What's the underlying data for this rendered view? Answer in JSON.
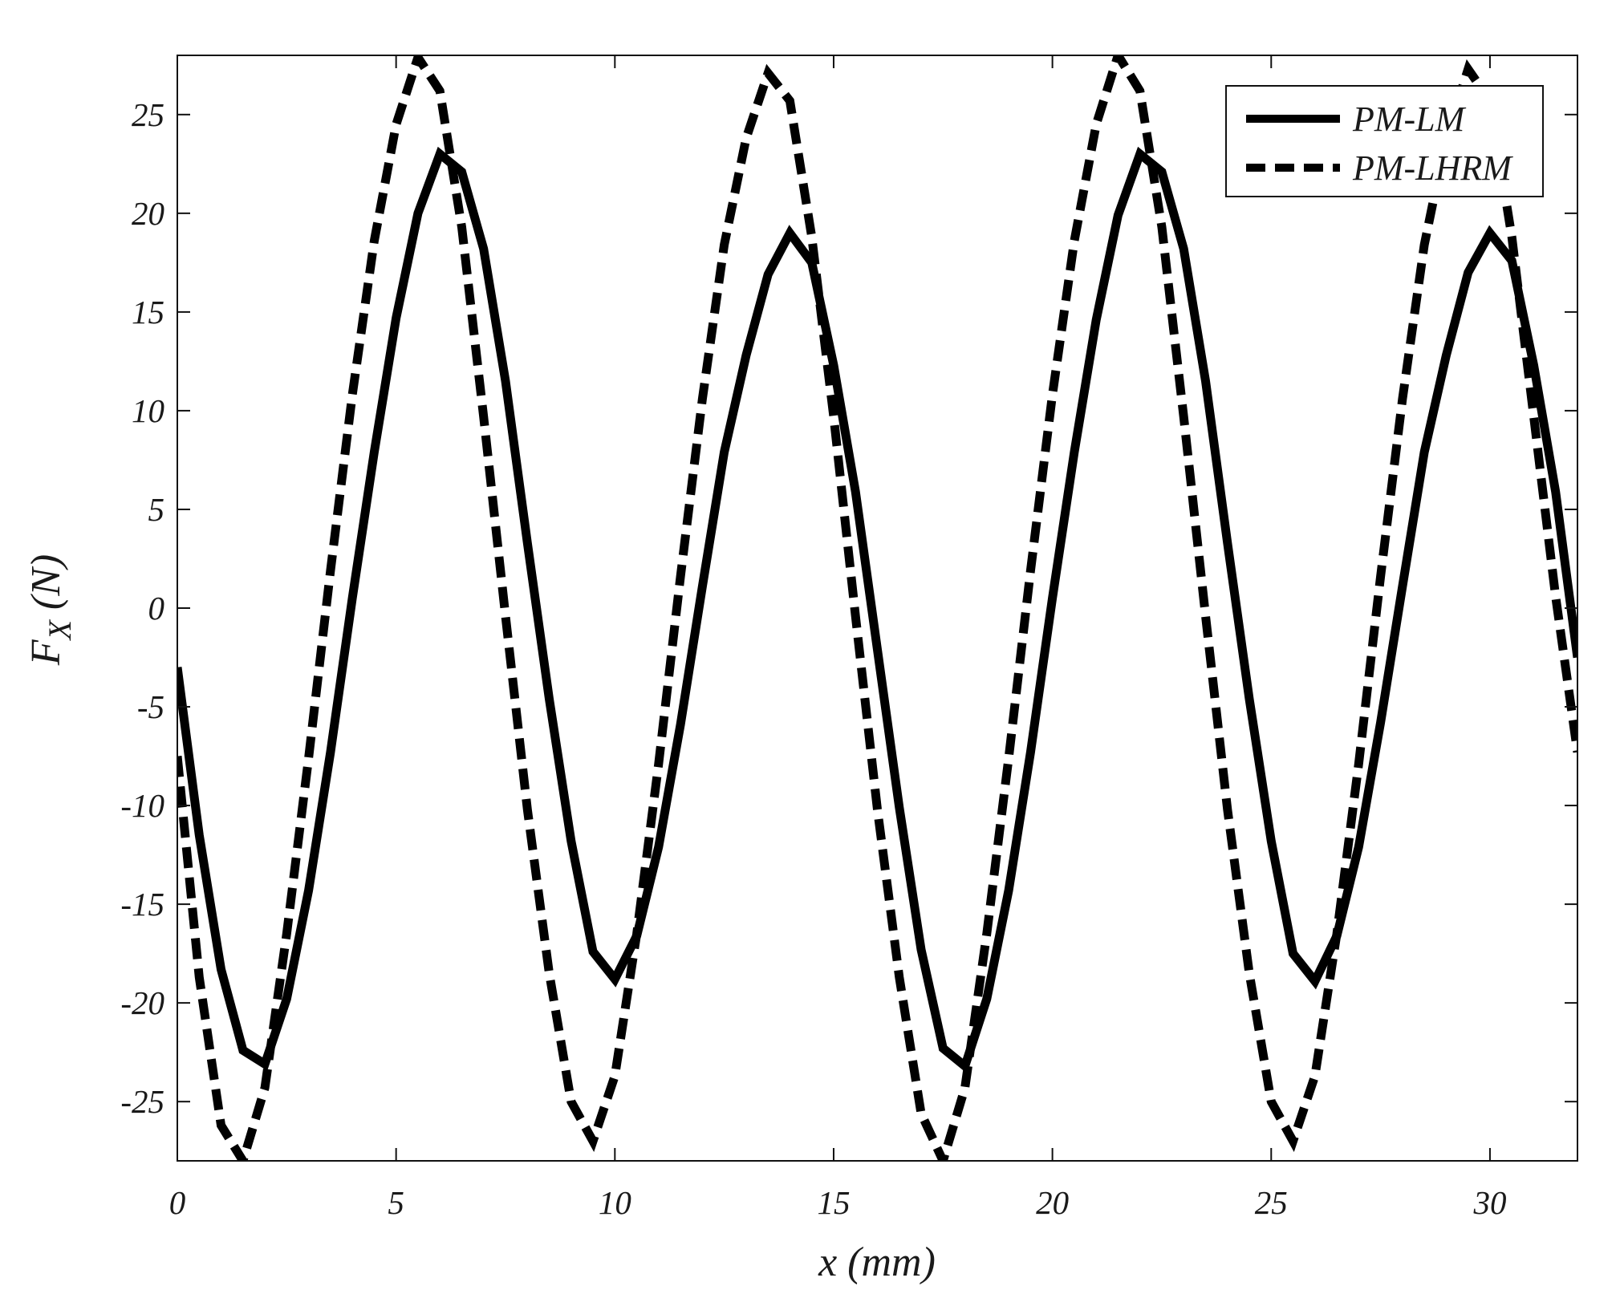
{
  "chart_data": {
    "type": "line",
    "title": "",
    "xlabel": "x (mm)",
    "ylabel_main": "F",
    "ylabel_sub": "X",
    "ylabel_rest": " (N)",
    "xlim": [
      0,
      32
    ],
    "ylim": [
      -28,
      28
    ],
    "xticks": [
      0,
      5,
      10,
      15,
      20,
      25,
      30
    ],
    "yticks": [
      -25,
      -20,
      -15,
      -10,
      -5,
      0,
      5,
      10,
      15,
      20,
      25
    ],
    "grid": false,
    "legend_position": "top-right",
    "series": [
      {
        "name": "PM-LM",
        "style": "solid",
        "color": "#000000",
        "x": [
          0,
          0.5,
          1,
          1.5,
          2,
          2.5,
          3,
          3.5,
          4,
          4.5,
          5,
          5.5,
          6,
          6.5,
          7,
          7.5,
          8,
          8.5,
          9,
          9.5,
          10,
          10.5,
          11,
          11.5,
          12,
          12.5,
          13,
          13.5,
          14,
          14.5,
          15,
          15.5,
          16,
          16.5,
          17,
          17.5,
          18,
          18.5,
          19,
          19.5,
          20,
          20.5,
          21,
          21.5,
          22,
          22.5,
          23,
          23.5,
          24,
          24.5,
          25,
          25.5,
          26,
          26.5,
          27,
          27.5,
          28,
          28.5,
          29,
          29.5,
          30,
          30.5,
          31,
          31.5,
          32
        ],
        "y": [
          -3,
          -11.5,
          -18.3,
          -22.4,
          -23.1,
          -19.8,
          -14.3,
          -7.3,
          0.5,
          7.9,
          14.7,
          20,
          23,
          22.1,
          18.2,
          11.5,
          3.3,
          -4.6,
          -11.8,
          -17.4,
          -18.8,
          -16.6,
          -12.1,
          -5.9,
          1.1,
          7.9,
          12.8,
          16.9,
          19,
          17.5,
          12.3,
          5.9,
          -2.1,
          -10.1,
          -17.3,
          -22.3,
          -23.2,
          -19.8,
          -14.3,
          -7.3,
          0.5,
          7.9,
          14.6,
          19.9,
          23,
          22.1,
          18.2,
          11.5,
          3.3,
          -4.6,
          -11.8,
          -17.5,
          -18.9,
          -16.6,
          -12.1,
          -5.8,
          1.1,
          7.9,
          12.8,
          17,
          19,
          17.6,
          12.3,
          5.9,
          -2.5
        ]
      },
      {
        "name": "PM-LHRM",
        "style": "dashed",
        "color": "#000000",
        "x": [
          0,
          0.5,
          1,
          1.5,
          2,
          2.5,
          3,
          3.5,
          4,
          4.5,
          5,
          5.5,
          6,
          6.5,
          7,
          7.5,
          8,
          8.5,
          9,
          9.5,
          10,
          10.5,
          11,
          11.5,
          12,
          12.5,
          13,
          13.5,
          14,
          14.5,
          15,
          15.5,
          16,
          16.5,
          17,
          17.5,
          18,
          18.5,
          19,
          19.5,
          20,
          20.5,
          21,
          21.5,
          22,
          22.5,
          23,
          23.5,
          24,
          24.5,
          25,
          25.5,
          26,
          26.5,
          27,
          27.5,
          28,
          28.5,
          29,
          29.5,
          30,
          30.5,
          31,
          31.5,
          32
        ],
        "y": [
          -7.5,
          -18.7,
          -26.2,
          -28,
          -24.3,
          -16.5,
          -7.6,
          1.9,
          10.8,
          18.6,
          24.5,
          27.9,
          26.2,
          19.3,
          9.7,
          -0.4,
          -10.2,
          -18.5,
          -25,
          -27,
          -23.7,
          -16.5,
          -7.9,
          1.6,
          10.6,
          18.4,
          23.8,
          27.1,
          25.7,
          18.8,
          9.7,
          -0.4,
          -10.2,
          -18.7,
          -25.6,
          -28,
          -24.3,
          -16.5,
          -7.6,
          1.9,
          10.8,
          18.6,
          24.5,
          28,
          26.2,
          19.3,
          9.7,
          -0.4,
          -10.2,
          -18.5,
          -25,
          -27,
          -23.7,
          -16.5,
          -7.9,
          1.6,
          10.6,
          18.4,
          23.8,
          27.3,
          25.7,
          18.8,
          9.7,
          0.6,
          -7.3
        ]
      }
    ]
  }
}
